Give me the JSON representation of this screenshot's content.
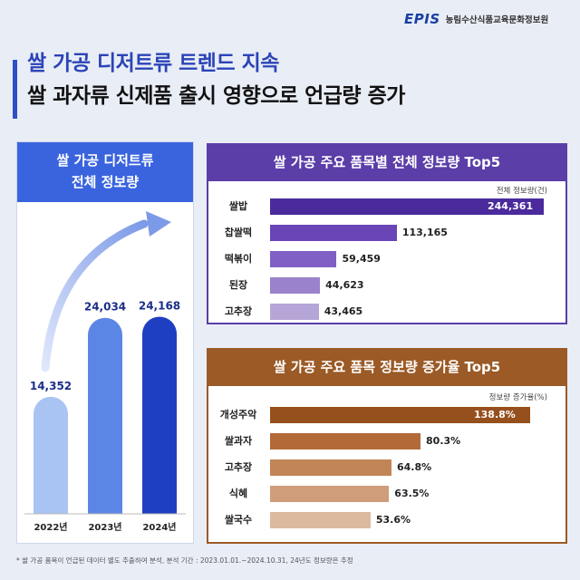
{
  "logo": {
    "mark": "EPIS",
    "org": "농림수산식품교육문화정보원"
  },
  "headline": {
    "line1": "쌀 가공 디저트류 트렌드 지속",
    "line2": "쌀 과자류 신제품 출시 영향으로 언급량 증가"
  },
  "colors": {
    "primary": "#2f4fc6",
    "purple": "#5b3ea8",
    "brown": "#9b5a26",
    "bg": "#e9edf6"
  },
  "chart_data": [
    {
      "type": "bar",
      "title": "쌀 가공 디저트류 전체 정보량",
      "categories": [
        "2022년",
        "2023년",
        "2024년"
      ],
      "values": [
        14352,
        24034,
        24168
      ],
      "labels": [
        "14,352",
        "24,034",
        "24,168"
      ],
      "ylim": [
        0,
        30000
      ]
    },
    {
      "type": "bar",
      "orientation": "horizontal",
      "title": "쌀 가공 주요 품목별 전체 정보량 Top5",
      "unit": "전체 정보량(건)",
      "categories": [
        "쌀밥",
        "찹쌀떡",
        "떡볶이",
        "된장",
        "고추장"
      ],
      "values": [
        244361,
        113165,
        59459,
        44623,
        43465
      ],
      "labels": [
        "244,361",
        "113,165",
        "59,459",
        "44,623",
        "43,465"
      ],
      "colors": [
        "#4a2a9c",
        "#6a45b8",
        "#8060c4",
        "#9a82cc",
        "#b6a6d8"
      ]
    },
    {
      "type": "bar",
      "orientation": "horizontal",
      "title": "쌀 가공 주요 품목 정보량 증가율 Top5",
      "unit": "정보량 증가율(%)",
      "categories": [
        "개성주악",
        "쌀과자",
        "고추장",
        "식혜",
        "쌀국수"
      ],
      "values": [
        138.8,
        80.3,
        64.8,
        63.5,
        53.6
      ],
      "labels": [
        "138.8%",
        "80.3%",
        "64.8%",
        "63.5%",
        "53.6%"
      ],
      "colors": [
        "#96501e",
        "#b26a38",
        "#c28558",
        "#cf9d7a",
        "#dcbaa0"
      ]
    }
  ],
  "footnote": "* 쌀 가공 품목이 언급된 데이터 별도 추출하여 분석, 분석 기간 : 2023.01.01.~2024.10.31, 24년도 정보량은 추정"
}
